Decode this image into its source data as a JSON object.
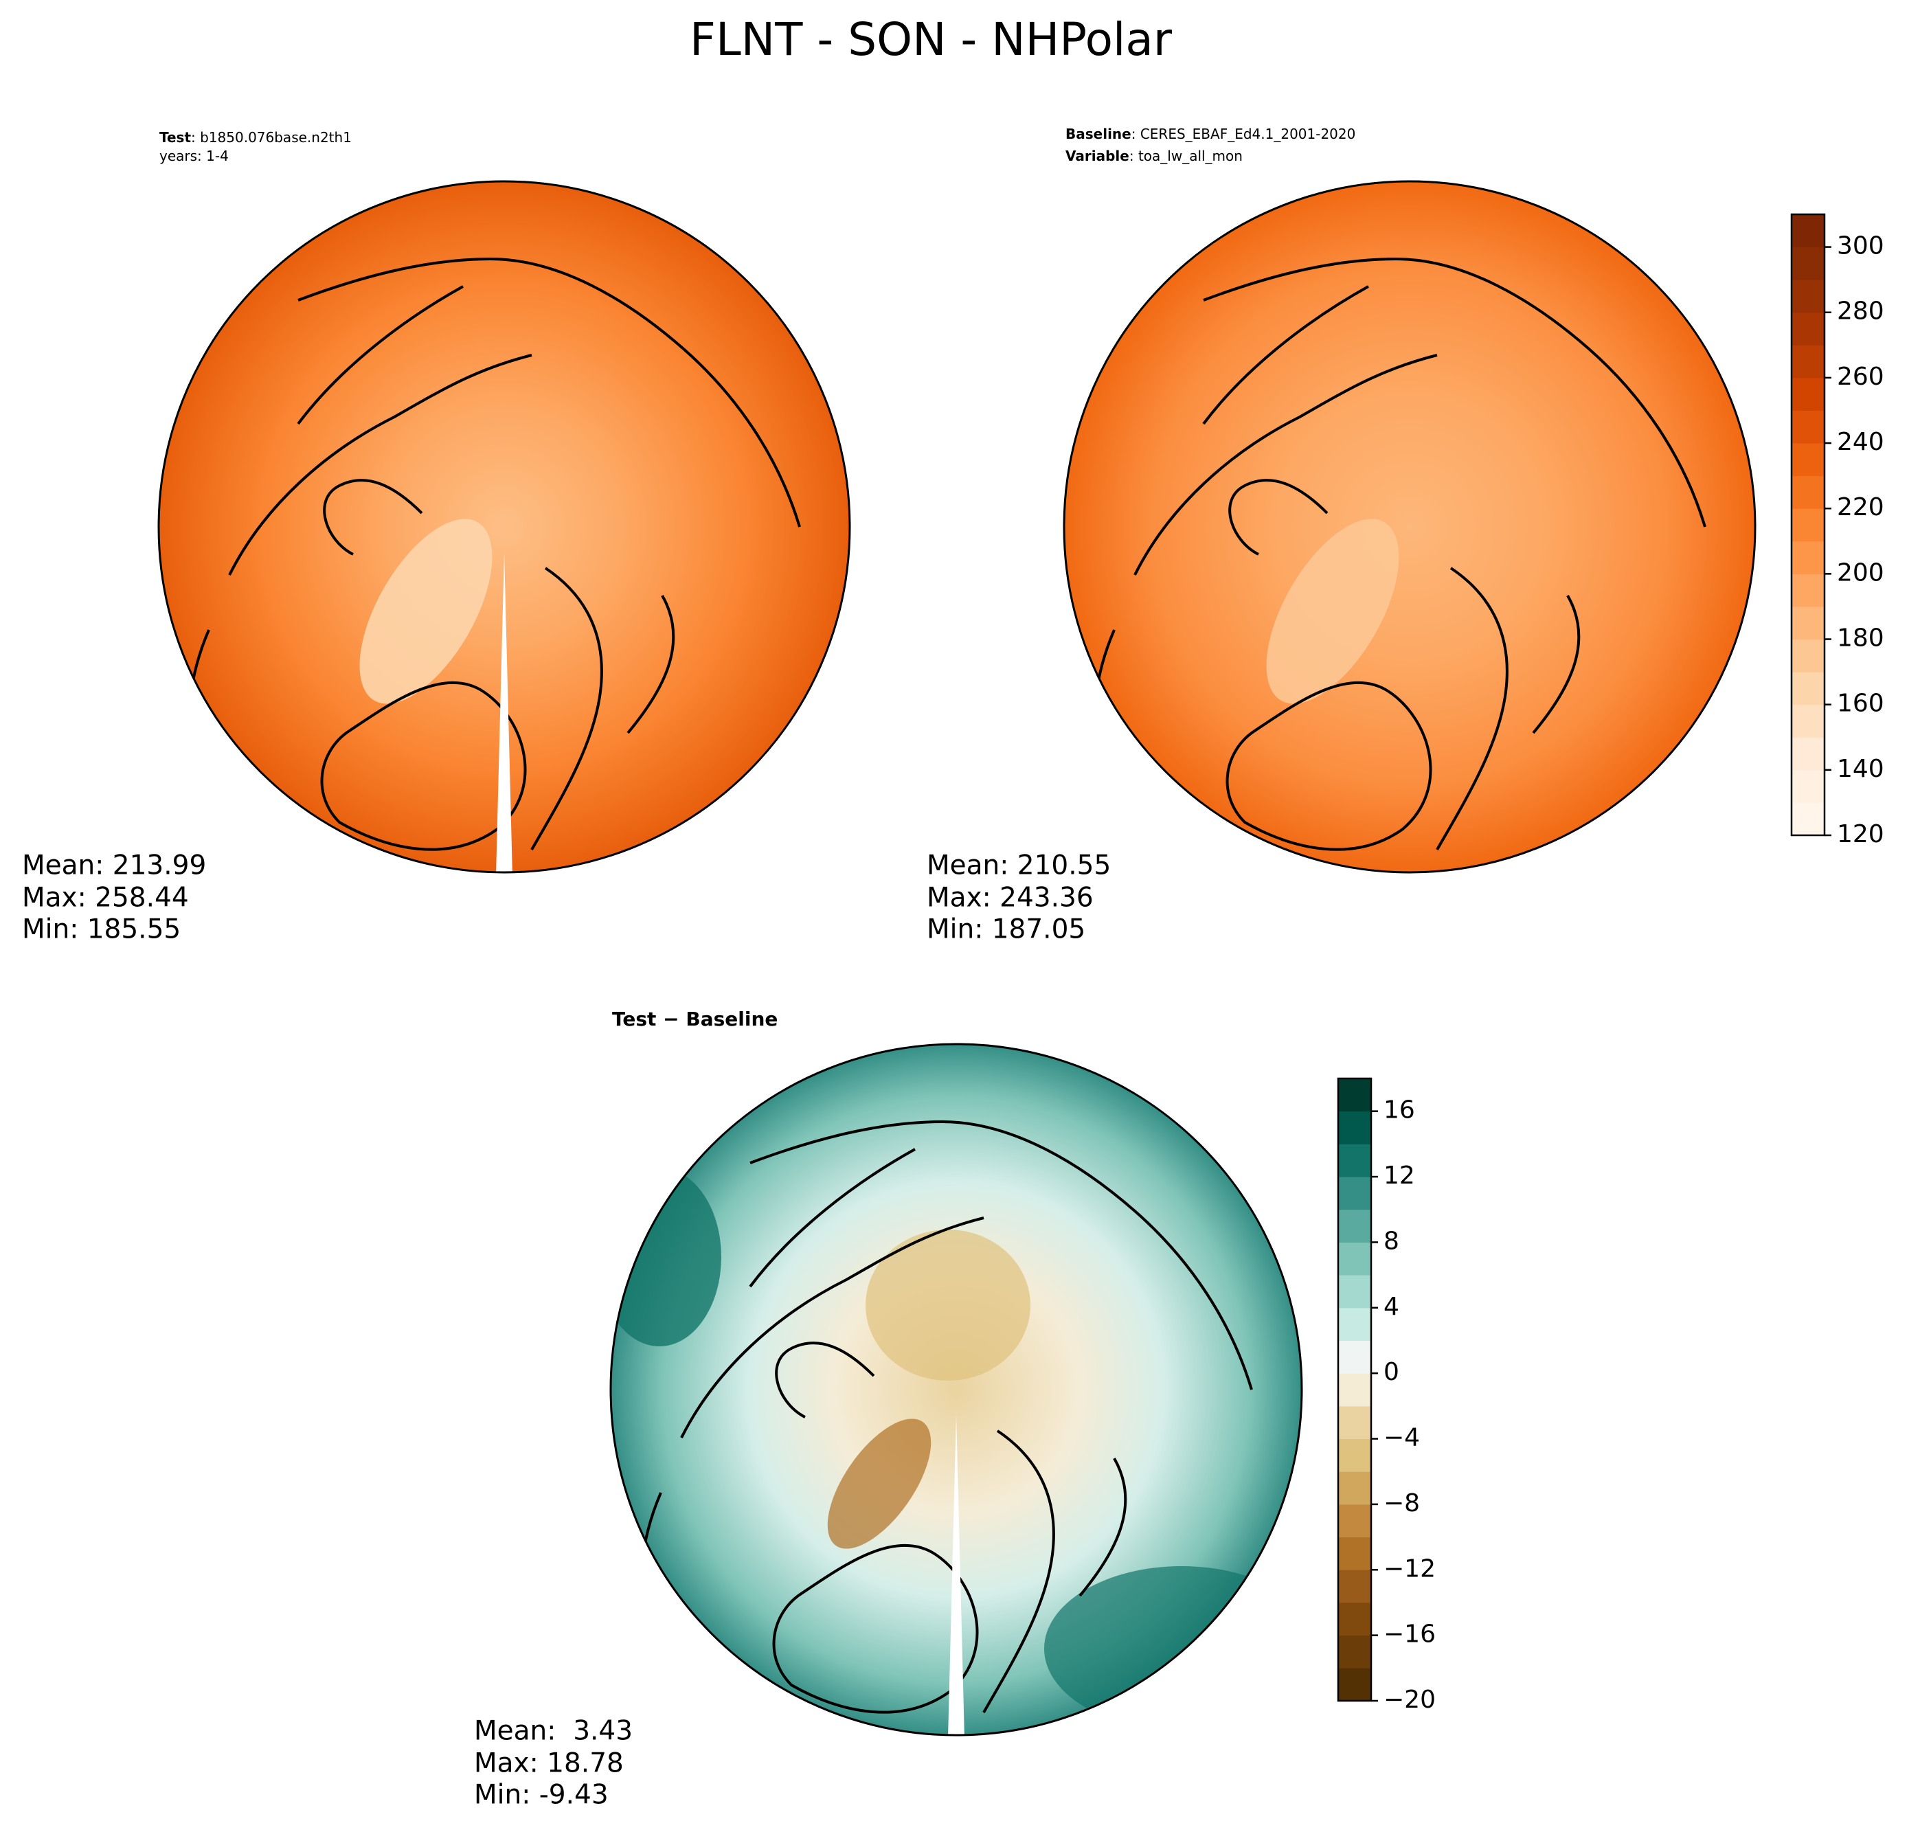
{
  "title": "FLNT - SON - NHPolar",
  "panels": [
    {
      "header": [
        {
          "key": "Test",
          "text": ": b1850.076base.n2th1"
        },
        {
          "text": "years: 1-4"
        }
      ],
      "stats": [
        "Mean: 213.99",
        "Max: 258.44",
        "Min: 185.55"
      ]
    },
    {
      "header": [
        {
          "key": "Baseline",
          "text": ": CERES_EBAF_Ed4.1_2001-2020"
        },
        {
          "key": "Variable",
          "text": ": toa_lw_all_mon"
        }
      ],
      "stats": [
        "Mean: 210.55",
        "Max: 243.36",
        "Min: 187.05"
      ]
    },
    {
      "header": [
        {
          "key": "Test − Baseline"
        }
      ],
      "stats": [
        "Mean:  3.43",
        "Max: 18.78",
        "Min: -9.43"
      ]
    }
  ],
  "colorbars": [
    {
      "lim": [
        120,
        310
      ],
      "ticks": [
        120,
        140,
        160,
        180,
        200,
        220,
        240,
        260,
        280,
        300
      ],
      "colors": [
        "#fff5eb",
        "#fff0e2",
        "#feead6",
        "#fee0c1",
        "#fdd5ab",
        "#fdc794",
        "#fdb77a",
        "#fda762",
        "#fd9649",
        "#fa8532",
        "#f4731e",
        "#ec620f",
        "#e05207",
        "#d14501",
        "#bd3e02",
        "#a93603",
        "#983103",
        "#8a2c04",
        "#7f2704"
      ]
    },
    {
      "lim": [
        -20,
        18
      ],
      "ticks": [
        {
          "value": -20,
          "label": "−20"
        },
        {
          "value": -16,
          "label": "−16"
        },
        {
          "value": -12,
          "label": "−12"
        },
        {
          "value": -8,
          "label": "−8"
        },
        {
          "value": -4,
          "label": "−4"
        },
        0,
        4,
        8,
        12,
        16
      ],
      "colors": [
        "#543005",
        "#6a3d09",
        "#80490d",
        "#985b1a",
        "#b07227",
        "#c38a3f",
        "#d1a75e",
        "#dfc27d",
        "#ead3a0",
        "#f5ecd6",
        "#f0f5f3",
        "#c7eae3",
        "#a4d9cf",
        "#80c4b8",
        "#5aaa9f",
        "#358f86",
        "#137569",
        "#01594e",
        "#003c30"
      ]
    }
  ]
}
